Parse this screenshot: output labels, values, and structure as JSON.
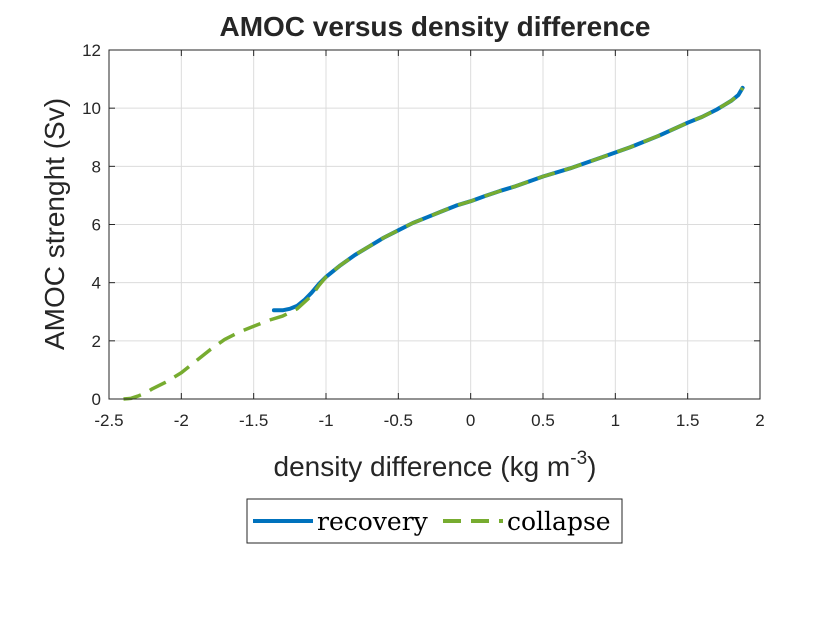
{
  "chart_data": {
    "type": "line",
    "title": "AMOC versus density difference",
    "xlabel": "density difference (kg m",
    "xlabel_superscript": "-3",
    "xlabel_suffix": ")",
    "ylabel": "AMOC strenght (Sv)",
    "xlim": [
      -2.5,
      2
    ],
    "ylim": [
      0,
      12
    ],
    "xticks": [
      -2.5,
      -2,
      -1.5,
      -1,
      -0.5,
      0,
      0.5,
      1,
      1.5,
      2
    ],
    "xtick_labels": [
      "-2.5",
      "-2",
      "-1.5",
      "-1",
      "-0.5",
      "0",
      "0.5",
      "1",
      "1.5",
      "2"
    ],
    "yticks": [
      0,
      2,
      4,
      6,
      8,
      10,
      12
    ],
    "ytick_labels": [
      "0",
      "2",
      "4",
      "6",
      "8",
      "10",
      "12"
    ],
    "grid": true,
    "legend_position": "bottom-center",
    "series": [
      {
        "name": "recovery",
        "color": "#0072BD",
        "style": "solid",
        "x": [
          -1.36,
          -1.3,
          -1.25,
          -1.2,
          -1.15,
          -1.1,
          -1.05,
          -1.0,
          -0.9,
          -0.8,
          -0.7,
          -0.6,
          -0.5,
          -0.4,
          -0.3,
          -0.2,
          -0.1,
          0.0,
          0.1,
          0.2,
          0.3,
          0.5,
          0.7,
          0.9,
          1.1,
          1.3,
          1.5,
          1.6,
          1.7,
          1.75,
          1.8,
          1.85,
          1.88
        ],
        "y": [
          3.05,
          3.05,
          3.1,
          3.2,
          3.4,
          3.65,
          3.95,
          4.2,
          4.6,
          4.95,
          5.25,
          5.55,
          5.8,
          6.05,
          6.25,
          6.45,
          6.65,
          6.8,
          6.98,
          7.15,
          7.3,
          7.65,
          7.95,
          8.3,
          8.65,
          9.05,
          9.5,
          9.7,
          9.95,
          10.1,
          10.25,
          10.45,
          10.7
        ]
      },
      {
        "name": "collapse",
        "color": "#77AC30",
        "style": "dashed",
        "x": [
          -2.4,
          -2.35,
          -2.3,
          -2.25,
          -2.2,
          -2.1,
          -2.0,
          -1.9,
          -1.8,
          -1.7,
          -1.6,
          -1.5,
          -1.4,
          -1.3,
          -1.2,
          -1.1,
          -1.05,
          -1.0,
          -0.9,
          -0.8,
          -0.7,
          -0.6,
          -0.5,
          -0.4,
          -0.3,
          -0.2,
          -0.1,
          0.0,
          0.1,
          0.2,
          0.3,
          0.5,
          0.7,
          0.9,
          1.1,
          1.3,
          1.5,
          1.6,
          1.7,
          1.75,
          1.8,
          1.85,
          1.88
        ],
        "y": [
          0.0,
          0.02,
          0.1,
          0.2,
          0.35,
          0.6,
          0.9,
          1.3,
          1.7,
          2.05,
          2.3,
          2.5,
          2.7,
          2.85,
          3.1,
          3.55,
          3.9,
          4.2,
          4.6,
          4.95,
          5.25,
          5.55,
          5.8,
          6.05,
          6.25,
          6.45,
          6.65,
          6.8,
          6.98,
          7.15,
          7.3,
          7.65,
          7.95,
          8.3,
          8.65,
          9.05,
          9.5,
          9.7,
          9.95,
          10.1,
          10.25,
          10.45,
          10.7
        ]
      }
    ]
  }
}
